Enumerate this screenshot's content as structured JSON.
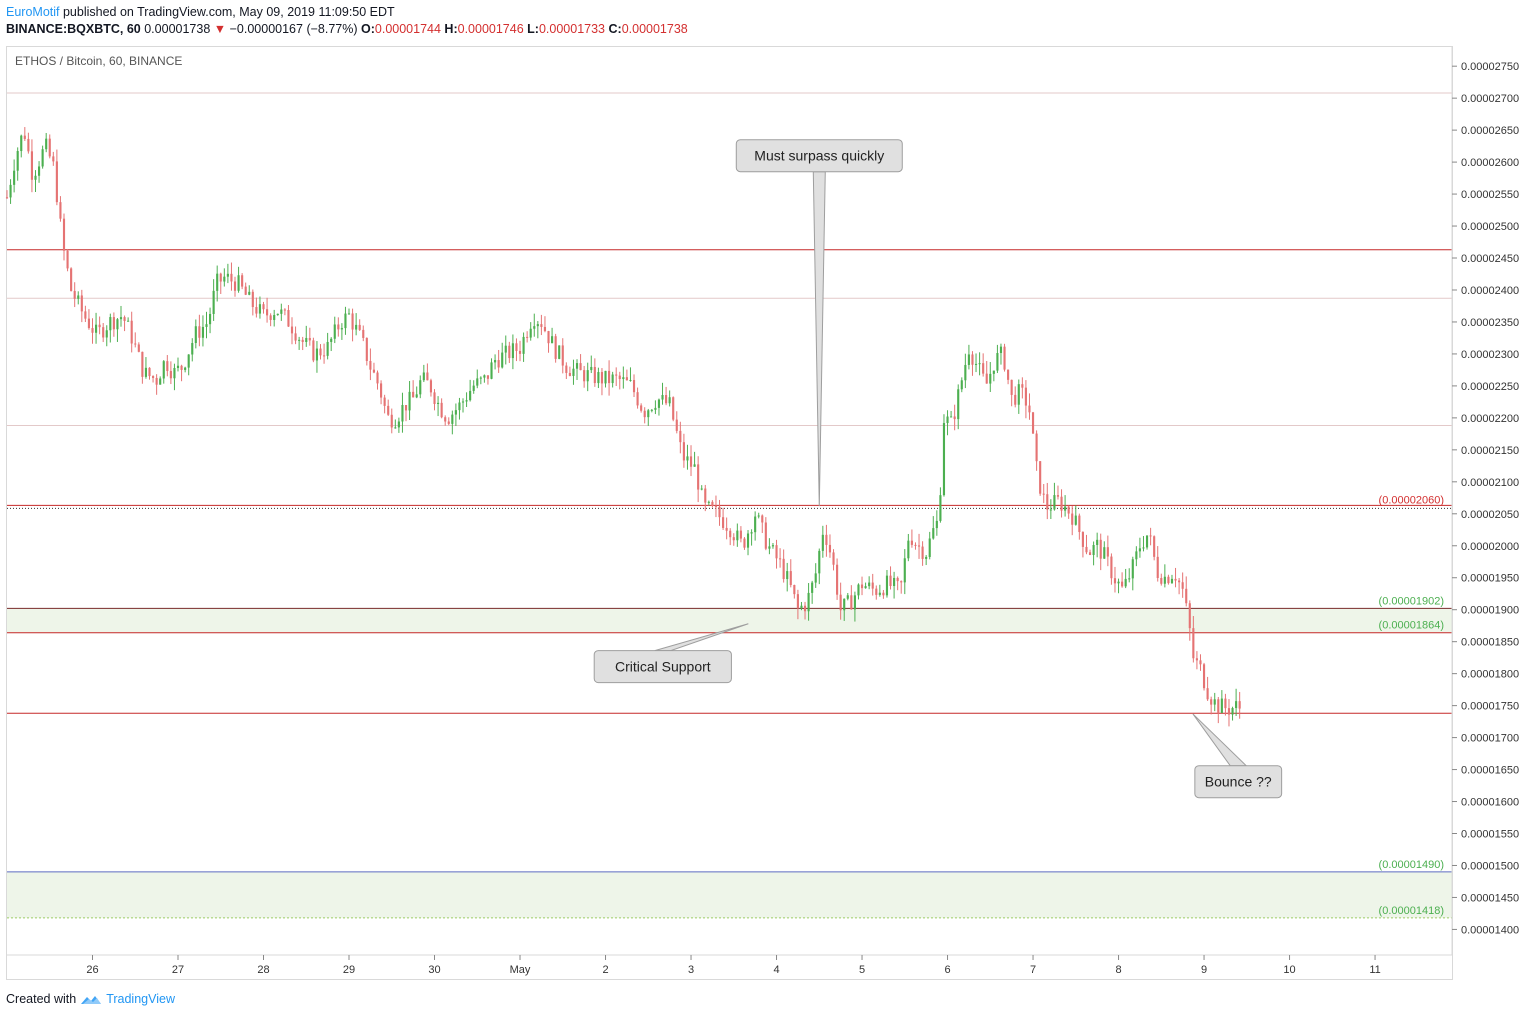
{
  "header": {
    "author": "EuroMotif",
    "published": "published on TradingView.com, May 09, 2019 11:09:50 EDT",
    "symbol": "BINANCE:BQXBTC, 60",
    "last": "0.00001738",
    "change": "−0.00000167 (−8.77%)",
    "o_label": "O:",
    "o_value": "0.00001744",
    "h_label": "H:",
    "h_value": "0.00001746",
    "l_label": "L:",
    "l_value": "0.00001733",
    "c_label": "C:",
    "c_value": "0.00001738"
  },
  "chart_title": "ETHOS / Bitcoin, 60, BINANCE",
  "footer": {
    "created": "Created with",
    "brand": "TradingView"
  },
  "colors": {
    "up": "#4caf50",
    "down": "#e57373",
    "red_line": "#c62828",
    "green_label": "#4caf50",
    "zone_fill": "#eef5e9",
    "grid": "#e0e0e0",
    "brand": "#2196f3"
  },
  "chart_data": {
    "type": "candlestick",
    "y_axis": {
      "ticks": [
        "0.00002750",
        "0.00002700",
        "0.00002650",
        "0.00002600",
        "0.00002550",
        "0.00002500",
        "0.00002450",
        "0.00002400",
        "0.00002350",
        "0.00002300",
        "0.00002250",
        "0.00002200",
        "0.00002150",
        "0.00002100",
        "0.00002050",
        "0.00002000",
        "0.00001950",
        "0.00001900",
        "0.00001850",
        "0.00001800",
        "0.00001750",
        "0.00001700",
        "0.00001650",
        "0.00001600",
        "0.00001550",
        "0.00001500",
        "0.00001450",
        "0.00001400"
      ],
      "range": [
        1.36e-05,
        2.78e-05
      ]
    },
    "x_axis": {
      "ticks": [
        {
          "label": "26",
          "t": 25.0
        },
        {
          "label": "27",
          "t": 26.0
        },
        {
          "label": "28",
          "t": 27.0
        },
        {
          "label": "29",
          "t": 28.0
        },
        {
          "label": "30",
          "t": 29.0
        },
        {
          "label": "May",
          "t": 30.0
        },
        {
          "label": "2",
          "t": 31.0
        },
        {
          "label": "3",
          "t": 32.0
        },
        {
          "label": "4",
          "t": 33.0
        },
        {
          "label": "5",
          "t": 34.0
        },
        {
          "label": "6",
          "t": 35.0
        },
        {
          "label": "7",
          "t": 36.0
        },
        {
          "label": "8",
          "t": 37.0
        },
        {
          "label": "9",
          "t": 38.0
        },
        {
          "label": "10",
          "t": 39.0
        },
        {
          "label": "11",
          "t": 40.0
        }
      ],
      "range": [
        24.0,
        40.9
      ]
    },
    "horizontal_lines": [
      {
        "price": 2.463e-05,
        "style": "red"
      },
      {
        "price": 2.387e-05,
        "style": "light"
      },
      {
        "price": 2.188e-05,
        "style": "light"
      },
      {
        "price": 2.708e-05,
        "style": "light"
      },
      {
        "price": 2.06e-05,
        "style": "red-double",
        "label": "(0.00002060)"
      },
      {
        "price": 1.738e-05,
        "style": "red"
      }
    ],
    "zones": [
      {
        "top": 1.902e-05,
        "bottom": 1.864e-05,
        "top_label": "(0.00001902)",
        "bottom_label": "(0.00001864)"
      },
      {
        "top": 1.49e-05,
        "bottom": 1.418e-05,
        "top_label": "(0.00001490)",
        "bottom_label": "(0.00001418)"
      }
    ],
    "annotations": [
      {
        "text": "Must surpass quickly",
        "t": 33.5,
        "price": 2.062e-05,
        "box_t": 33.5,
        "box_price": 2.61e-05,
        "pointer": "down"
      },
      {
        "text": "Critical Support",
        "t": 32.67,
        "price": 1.878e-05,
        "box_t": 31.67,
        "box_price": 1.811e-05,
        "pointer": "up"
      },
      {
        "text": "Bounce ??",
        "t": 37.87,
        "price": 1.737e-05,
        "box_t": 38.4,
        "box_price": 1.631e-05,
        "pointer": "up"
      }
    ],
    "path": [
      [
        24.0,
        2.545e-05
      ],
      [
        24.1,
        2.61e-05
      ],
      [
        24.2,
        2.65e-05
      ],
      [
        24.3,
        2.58e-05
      ],
      [
        24.45,
        2.625e-05
      ],
      [
        24.55,
        2.59e-05
      ],
      [
        24.65,
        2.47e-05
      ],
      [
        24.75,
        2.4e-05
      ],
      [
        24.9,
        2.36e-05
      ],
      [
        25.05,
        2.33e-05
      ],
      [
        25.2,
        2.35e-05
      ],
      [
        25.35,
        2.36e-05
      ],
      [
        25.45,
        2.33e-05
      ],
      [
        25.5,
        2.31e-05
      ],
      [
        25.6,
        2.27e-05
      ],
      [
        25.75,
        2.26e-05
      ],
      [
        25.85,
        2.29e-05
      ],
      [
        25.95,
        2.27e-05
      ],
      [
        26.05,
        2.28e-05
      ],
      [
        26.2,
        2.33e-05
      ],
      [
        26.35,
        2.35e-05
      ],
      [
        26.45,
        2.41e-05
      ],
      [
        26.55,
        2.42e-05
      ],
      [
        26.7,
        2.41e-05
      ],
      [
        26.85,
        2.38e-05
      ],
      [
        27.0,
        2.36e-05
      ],
      [
        27.15,
        2.37e-05
      ],
      [
        27.3,
        2.35e-05
      ],
      [
        27.45,
        2.32e-05
      ],
      [
        27.6,
        2.3e-05
      ],
      [
        27.75,
        2.31e-05
      ],
      [
        27.9,
        2.35e-05
      ],
      [
        28.0,
        2.36e-05
      ],
      [
        28.15,
        2.32e-05
      ],
      [
        28.25,
        2.28e-05
      ],
      [
        28.35,
        2.25e-05
      ],
      [
        28.45,
        2.2e-05
      ],
      [
        28.55,
        2.2e-05
      ],
      [
        28.65,
        2.22e-05
      ],
      [
        28.75,
        2.23e-05
      ],
      [
        28.85,
        2.26e-05
      ],
      [
        28.95,
        2.25e-05
      ],
      [
        29.05,
        2.22e-05
      ],
      [
        29.15,
        2.2e-05
      ],
      [
        29.3,
        2.22e-05
      ],
      [
        29.45,
        2.25e-05
      ],
      [
        29.6,
        2.26e-05
      ],
      [
        29.7,
        2.29e-05
      ],
      [
        29.85,
        2.3e-05
      ],
      [
        30.0,
        2.31e-05
      ],
      [
        30.15,
        2.36e-05
      ],
      [
        30.25,
        2.35e-05
      ],
      [
        30.4,
        2.31e-05
      ],
      [
        30.55,
        2.28e-05
      ],
      [
        30.7,
        2.27e-05
      ],
      [
        30.85,
        2.265e-05
      ],
      [
        31.0,
        2.26e-05
      ],
      [
        31.15,
        2.26e-05
      ],
      [
        31.3,
        2.25e-05
      ],
      [
        31.45,
        2.21e-05
      ],
      [
        31.6,
        2.23e-05
      ],
      [
        31.75,
        2.22e-05
      ],
      [
        31.9,
        2.14e-05
      ],
      [
        32.05,
        2.12e-05
      ],
      [
        32.15,
        2.06e-05
      ],
      [
        32.3,
        2.05e-05
      ],
      [
        32.45,
        2.03e-05
      ],
      [
        32.6,
        2e-05
      ],
      [
        32.75,
        2.05e-05
      ],
      [
        32.9,
        2e-05
      ],
      [
        33.05,
        1.97e-05
      ],
      [
        33.15,
        1.94e-05
      ],
      [
        33.25,
        1.9e-05
      ],
      [
        33.35,
        1.91e-05
      ],
      [
        33.45,
        1.95e-05
      ],
      [
        33.55,
        2.03e-05
      ],
      [
        33.65,
        1.98e-05
      ],
      [
        33.75,
        1.9e-05
      ],
      [
        33.85,
        1.91e-05
      ],
      [
        34.0,
        1.94e-05
      ],
      [
        34.15,
        1.93e-05
      ],
      [
        34.3,
        1.94e-05
      ],
      [
        34.45,
        1.93e-05
      ],
      [
        34.55,
        2.02e-05
      ],
      [
        34.65,
        2e-05
      ],
      [
        34.75,
        1.99e-05
      ],
      [
        34.85,
        2.03e-05
      ],
      [
        34.9,
        2.04e-05
      ],
      [
        34.95,
        2.2e-05
      ],
      [
        35.05,
        2.19e-05
      ],
      [
        35.15,
        2.25e-05
      ],
      [
        35.25,
        2.31e-05
      ],
      [
        35.35,
        2.28e-05
      ],
      [
        35.45,
        2.25e-05
      ],
      [
        35.55,
        2.29e-05
      ],
      [
        35.65,
        2.3e-05
      ],
      [
        35.75,
        2.23e-05
      ],
      [
        35.85,
        2.24e-05
      ],
      [
        35.95,
        2.22e-05
      ],
      [
        36.05,
        2.11e-05
      ],
      [
        36.15,
        2.06e-05
      ],
      [
        36.3,
        2.07e-05
      ],
      [
        36.45,
        2.05e-05
      ],
      [
        36.55,
        2.02e-05
      ],
      [
        36.65,
        1.99e-05
      ],
      [
        36.75,
        2e-05
      ],
      [
        36.85,
        1.98e-05
      ],
      [
        36.95,
        1.95e-05
      ],
      [
        37.05,
        1.93e-05
      ],
      [
        37.15,
        1.96e-05
      ],
      [
        37.25,
        2e-05
      ],
      [
        37.35,
        2.02e-05
      ],
      [
        37.45,
        1.96e-05
      ],
      [
        37.55,
        1.95e-05
      ],
      [
        37.65,
        1.96e-05
      ],
      [
        37.75,
        1.93e-05
      ],
      [
        37.82,
        1.88e-05
      ],
      [
        37.88,
        1.82e-05
      ],
      [
        37.95,
        1.81e-05
      ],
      [
        38.05,
        1.77e-05
      ],
      [
        38.15,
        1.75e-05
      ],
      [
        38.3,
        1.745e-05
      ],
      [
        38.4,
        1.75e-05
      ],
      [
        38.45,
        1.738e-05
      ]
    ]
  }
}
